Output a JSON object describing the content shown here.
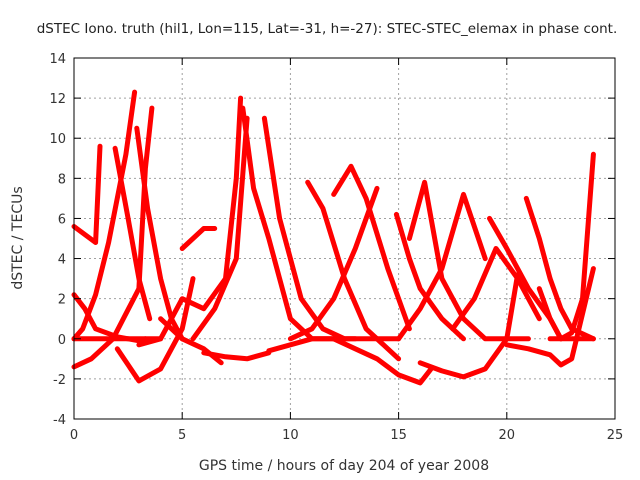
{
  "chart_data": {
    "type": "scatter",
    "title": "dSTEC Iono. truth (hil1, Lon=115, Lat=-31, h=-27): STEC-STEC_elemax in phase cont.",
    "xlabel": "GPS time / hours of day 204 of year 2008",
    "ylabel": "dSTEC  / TECUs",
    "xlim": [
      0,
      25
    ],
    "ylim": [
      -4,
      14
    ],
    "x_ticks": [
      "0",
      "5",
      "10",
      "15",
      "20",
      "25"
    ],
    "y_ticks": [
      "-4",
      "-2",
      "0",
      "2",
      "4",
      "6",
      "8",
      "10",
      "12",
      "14"
    ],
    "x_tick_values": [
      0,
      5,
      10,
      15,
      20,
      25
    ],
    "y_tick_values": [
      -4,
      -2,
      0,
      2,
      4,
      6,
      8,
      10,
      12,
      14
    ],
    "grid": true,
    "marker": "plus",
    "color": "#ff0000",
    "series": [
      {
        "x": [
          0.0,
          0.5,
          1.0,
          1.2
        ],
        "y": [
          5.6,
          5.2,
          4.8,
          9.6
        ]
      },
      {
        "x": [
          0.0,
          0.5,
          1.0,
          2.0,
          3.0,
          3.3
        ],
        "y": [
          2.2,
          1.5,
          0.5,
          0.1,
          -0.1,
          0.0
        ]
      },
      {
        "x": [
          0.0,
          0.4,
          1.0,
          1.6,
          2.4,
          2.8
        ],
        "y": [
          0.0,
          0.5,
          2.2,
          4.8,
          9.2,
          12.3
        ]
      },
      {
        "x": [
          0.0,
          0.8,
          1.8,
          3.0,
          3.3,
          3.6
        ],
        "y": [
          -1.4,
          -1.0,
          0.0,
          2.5,
          8.5,
          11.5
        ]
      },
      {
        "x": [
          0.0,
          1.0,
          2.0,
          3.0,
          4.0
        ],
        "y": [
          0.0,
          0.0,
          0.0,
          0.0,
          0.0
        ]
      },
      {
        "x": [
          1.9,
          2.5,
          3.0,
          3.5
        ],
        "y": [
          9.5,
          6.0,
          3.0,
          1.0
        ]
      },
      {
        "x": [
          2.9,
          3.4,
          4.0,
          4.5,
          5.0
        ],
        "y": [
          10.5,
          6.5,
          3.0,
          1.0,
          0.0
        ]
      },
      {
        "x": [
          2.0,
          3.0,
          4.0,
          5.0,
          5.5
        ],
        "y": [
          -0.5,
          -2.1,
          -1.5,
          0.5,
          3.0
        ]
      },
      {
        "x": [
          3.0,
          4.0,
          5.0,
          6.0,
          7.0,
          7.5,
          7.7
        ],
        "y": [
          -0.3,
          0.0,
          2.0,
          1.5,
          3.0,
          8.0,
          12.0
        ]
      },
      {
        "x": [
          4.0,
          5.0,
          6.0,
          6.8
        ],
        "y": [
          1.0,
          0.0,
          -0.5,
          -1.2
        ]
      },
      {
        "x": [
          5.0,
          5.5,
          6.0,
          6.5
        ],
        "y": [
          4.5,
          5.0,
          5.5,
          5.5
        ]
      },
      {
        "x": [
          5.5,
          6.5,
          7.5,
          8.0
        ],
        "y": [
          0.0,
          1.5,
          4.0,
          11.0
        ]
      },
      {
        "x": [
          6.0,
          7.0,
          8.0,
          9.0
        ],
        "y": [
          -0.7,
          -0.9,
          -1.0,
          -0.7
        ]
      },
      {
        "x": [
          7.8,
          8.3,
          9.0,
          9.5,
          10.0,
          11.0,
          12.0
        ],
        "y": [
          11.5,
          7.5,
          5.0,
          3.0,
          1.0,
          0.0,
          0.0
        ]
      },
      {
        "x": [
          8.8,
          9.5,
          10.5,
          11.5,
          12.5,
          13.0
        ],
        "y": [
          11.0,
          6.0,
          2.0,
          0.5,
          0.0,
          0.0
        ]
      },
      {
        "x": [
          9.0,
          10.0,
          11.0,
          12.0,
          13.0,
          14.0,
          15.0
        ],
        "y": [
          -0.6,
          -0.3,
          0.0,
          0.0,
          0.0,
          0.0,
          0.0
        ]
      },
      {
        "x": [
          10.0,
          11.0,
          12.0,
          13.0,
          14.0
        ],
        "y": [
          0.0,
          0.5,
          2.0,
          4.5,
          7.5
        ]
      },
      {
        "x": [
          10.8,
          11.5,
          12.5,
          13.5,
          14.5,
          15.0
        ],
        "y": [
          7.8,
          6.5,
          3.0,
          0.5,
          -0.5,
          -1.0
        ]
      },
      {
        "x": [
          12.0,
          12.8,
          13.5,
          14.5,
          15.5
        ],
        "y": [
          7.2,
          8.6,
          7.0,
          3.5,
          0.5
        ]
      },
      {
        "x": [
          12.0,
          13.0,
          14.0,
          15.0,
          16.0,
          16.5
        ],
        "y": [
          0.0,
          -0.5,
          -1.0,
          -1.8,
          -2.2,
          -1.5
        ]
      },
      {
        "x": [
          14.9,
          15.5,
          16.0,
          17.0,
          18.0
        ],
        "y": [
          6.2,
          4.0,
          2.5,
          1.0,
          0.0
        ]
      },
      {
        "x": [
          15.0,
          16.0,
          17.0,
          18.0,
          19.0
        ],
        "y": [
          0.0,
          1.5,
          3.5,
          7.2,
          4.0
        ]
      },
      {
        "x": [
          15.5,
          16.2,
          17.0,
          18.0,
          19.0,
          20.0,
          21.0
        ],
        "y": [
          5.0,
          7.8,
          3.0,
          1.0,
          0.0,
          0.0,
          0.0
        ]
      },
      {
        "x": [
          16.0,
          17.0,
          18.0,
          19.0,
          20.0,
          20.5
        ],
        "y": [
          -1.2,
          -1.6,
          -1.9,
          -1.5,
          0.0,
          3.2
        ]
      },
      {
        "x": [
          17.5,
          18.5,
          19.5,
          20.5,
          21.5
        ],
        "y": [
          0.5,
          2.0,
          4.5,
          3.0,
          1.0
        ]
      },
      {
        "x": [
          19.2,
          20.0,
          21.0,
          22.0,
          22.5
        ],
        "y": [
          6.0,
          4.5,
          2.5,
          1.0,
          0.0
        ]
      },
      {
        "x": [
          20.0,
          21.0,
          22.0,
          22.5,
          23.0,
          24.0
        ],
        "y": [
          -0.3,
          -0.5,
          -0.8,
          -1.3,
          -1.0,
          3.5
        ]
      },
      {
        "x": [
          20.9,
          21.5,
          22.0,
          22.5,
          23.0,
          24.0
        ],
        "y": [
          7.0,
          5.0,
          3.0,
          1.5,
          0.5,
          0.0
        ]
      },
      {
        "x": [
          21.5,
          22.0,
          22.5,
          23.0,
          23.5,
          24.0
        ],
        "y": [
          2.5,
          1.0,
          0.0,
          0.3,
          2.0,
          9.2
        ]
      },
      {
        "x": [
          22.0,
          22.5,
          23.0,
          23.5,
          24.0
        ],
        "y": [
          0.0,
          0.0,
          0.0,
          0.0,
          0.0
        ]
      }
    ]
  }
}
